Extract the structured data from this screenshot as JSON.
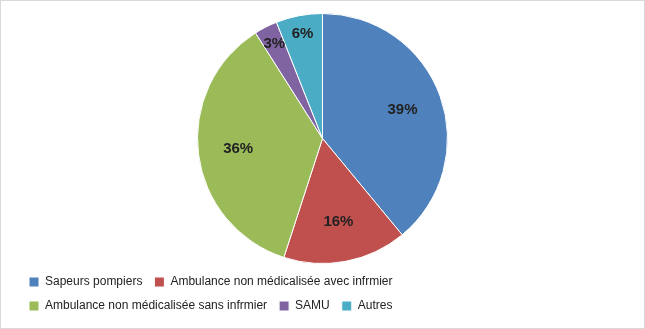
{
  "chart_data": {
    "type": "pie",
    "categories": [
      "Sapeurs pompiers",
      "Ambulance non médicalisée avec infrmier",
      "Ambulance non médicalisée sans infrmier",
      "SAMU",
      "Autres"
    ],
    "values": [
      39,
      16,
      36,
      3,
      6
    ],
    "value_labels": [
      "39%",
      "16%",
      "36%",
      "3%",
      "6%"
    ],
    "colors": [
      "#4f81bd",
      "#c0504d",
      "#9bbb59",
      "#8064a2",
      "#4bacc6"
    ],
    "legend": "bottom",
    "data_labels": true
  }
}
